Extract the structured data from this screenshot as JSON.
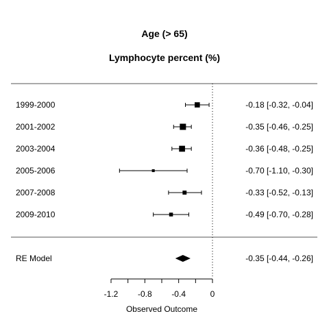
{
  "chart_data": {
    "type": "forest",
    "title": "Age (> 65)",
    "subtitle": "Lymphocyte percent (%)",
    "xlabel": "Observed Outcome",
    "xlim": [
      -1.2,
      0
    ],
    "xticks": [
      -1.2,
      -0.8,
      -0.4,
      0
    ],
    "xtick_labels": [
      "-1.2",
      "-0.8",
      "-0.4",
      "0"
    ],
    "reference_line": 0,
    "studies": [
      {
        "label": "1999-2000",
        "estimate": -0.18,
        "lower": -0.32,
        "upper": -0.04,
        "ci_text": "-0.18 [-0.32, -0.04]",
        "weight": 0.8
      },
      {
        "label": "2001-2002",
        "estimate": -0.35,
        "lower": -0.46,
        "upper": -0.25,
        "ci_text": "-0.35 [-0.46, -0.25]",
        "weight": 1.0
      },
      {
        "label": "2003-2004",
        "estimate": -0.36,
        "lower": -0.48,
        "upper": -0.25,
        "ci_text": "-0.36 [-0.48, -0.25]",
        "weight": 0.95
      },
      {
        "label": "2005-2006",
        "estimate": -0.7,
        "lower": -1.1,
        "upper": -0.3,
        "ci_text": "-0.70 [-1.10, -0.30]",
        "weight": 0.3
      },
      {
        "label": "2007-2008",
        "estimate": -0.33,
        "lower": -0.52,
        "upper": -0.13,
        "ci_text": "-0.33 [-0.52, -0.13]",
        "weight": 0.55
      },
      {
        "label": "2009-2010",
        "estimate": -0.49,
        "lower": -0.7,
        "upper": -0.28,
        "ci_text": "-0.49 [-0.70, -0.28]",
        "weight": 0.5
      }
    ],
    "summary": {
      "label": "RE Model",
      "estimate": -0.35,
      "lower": -0.44,
      "upper": -0.26,
      "ci_text": "-0.35 [-0.44, -0.26]"
    }
  }
}
